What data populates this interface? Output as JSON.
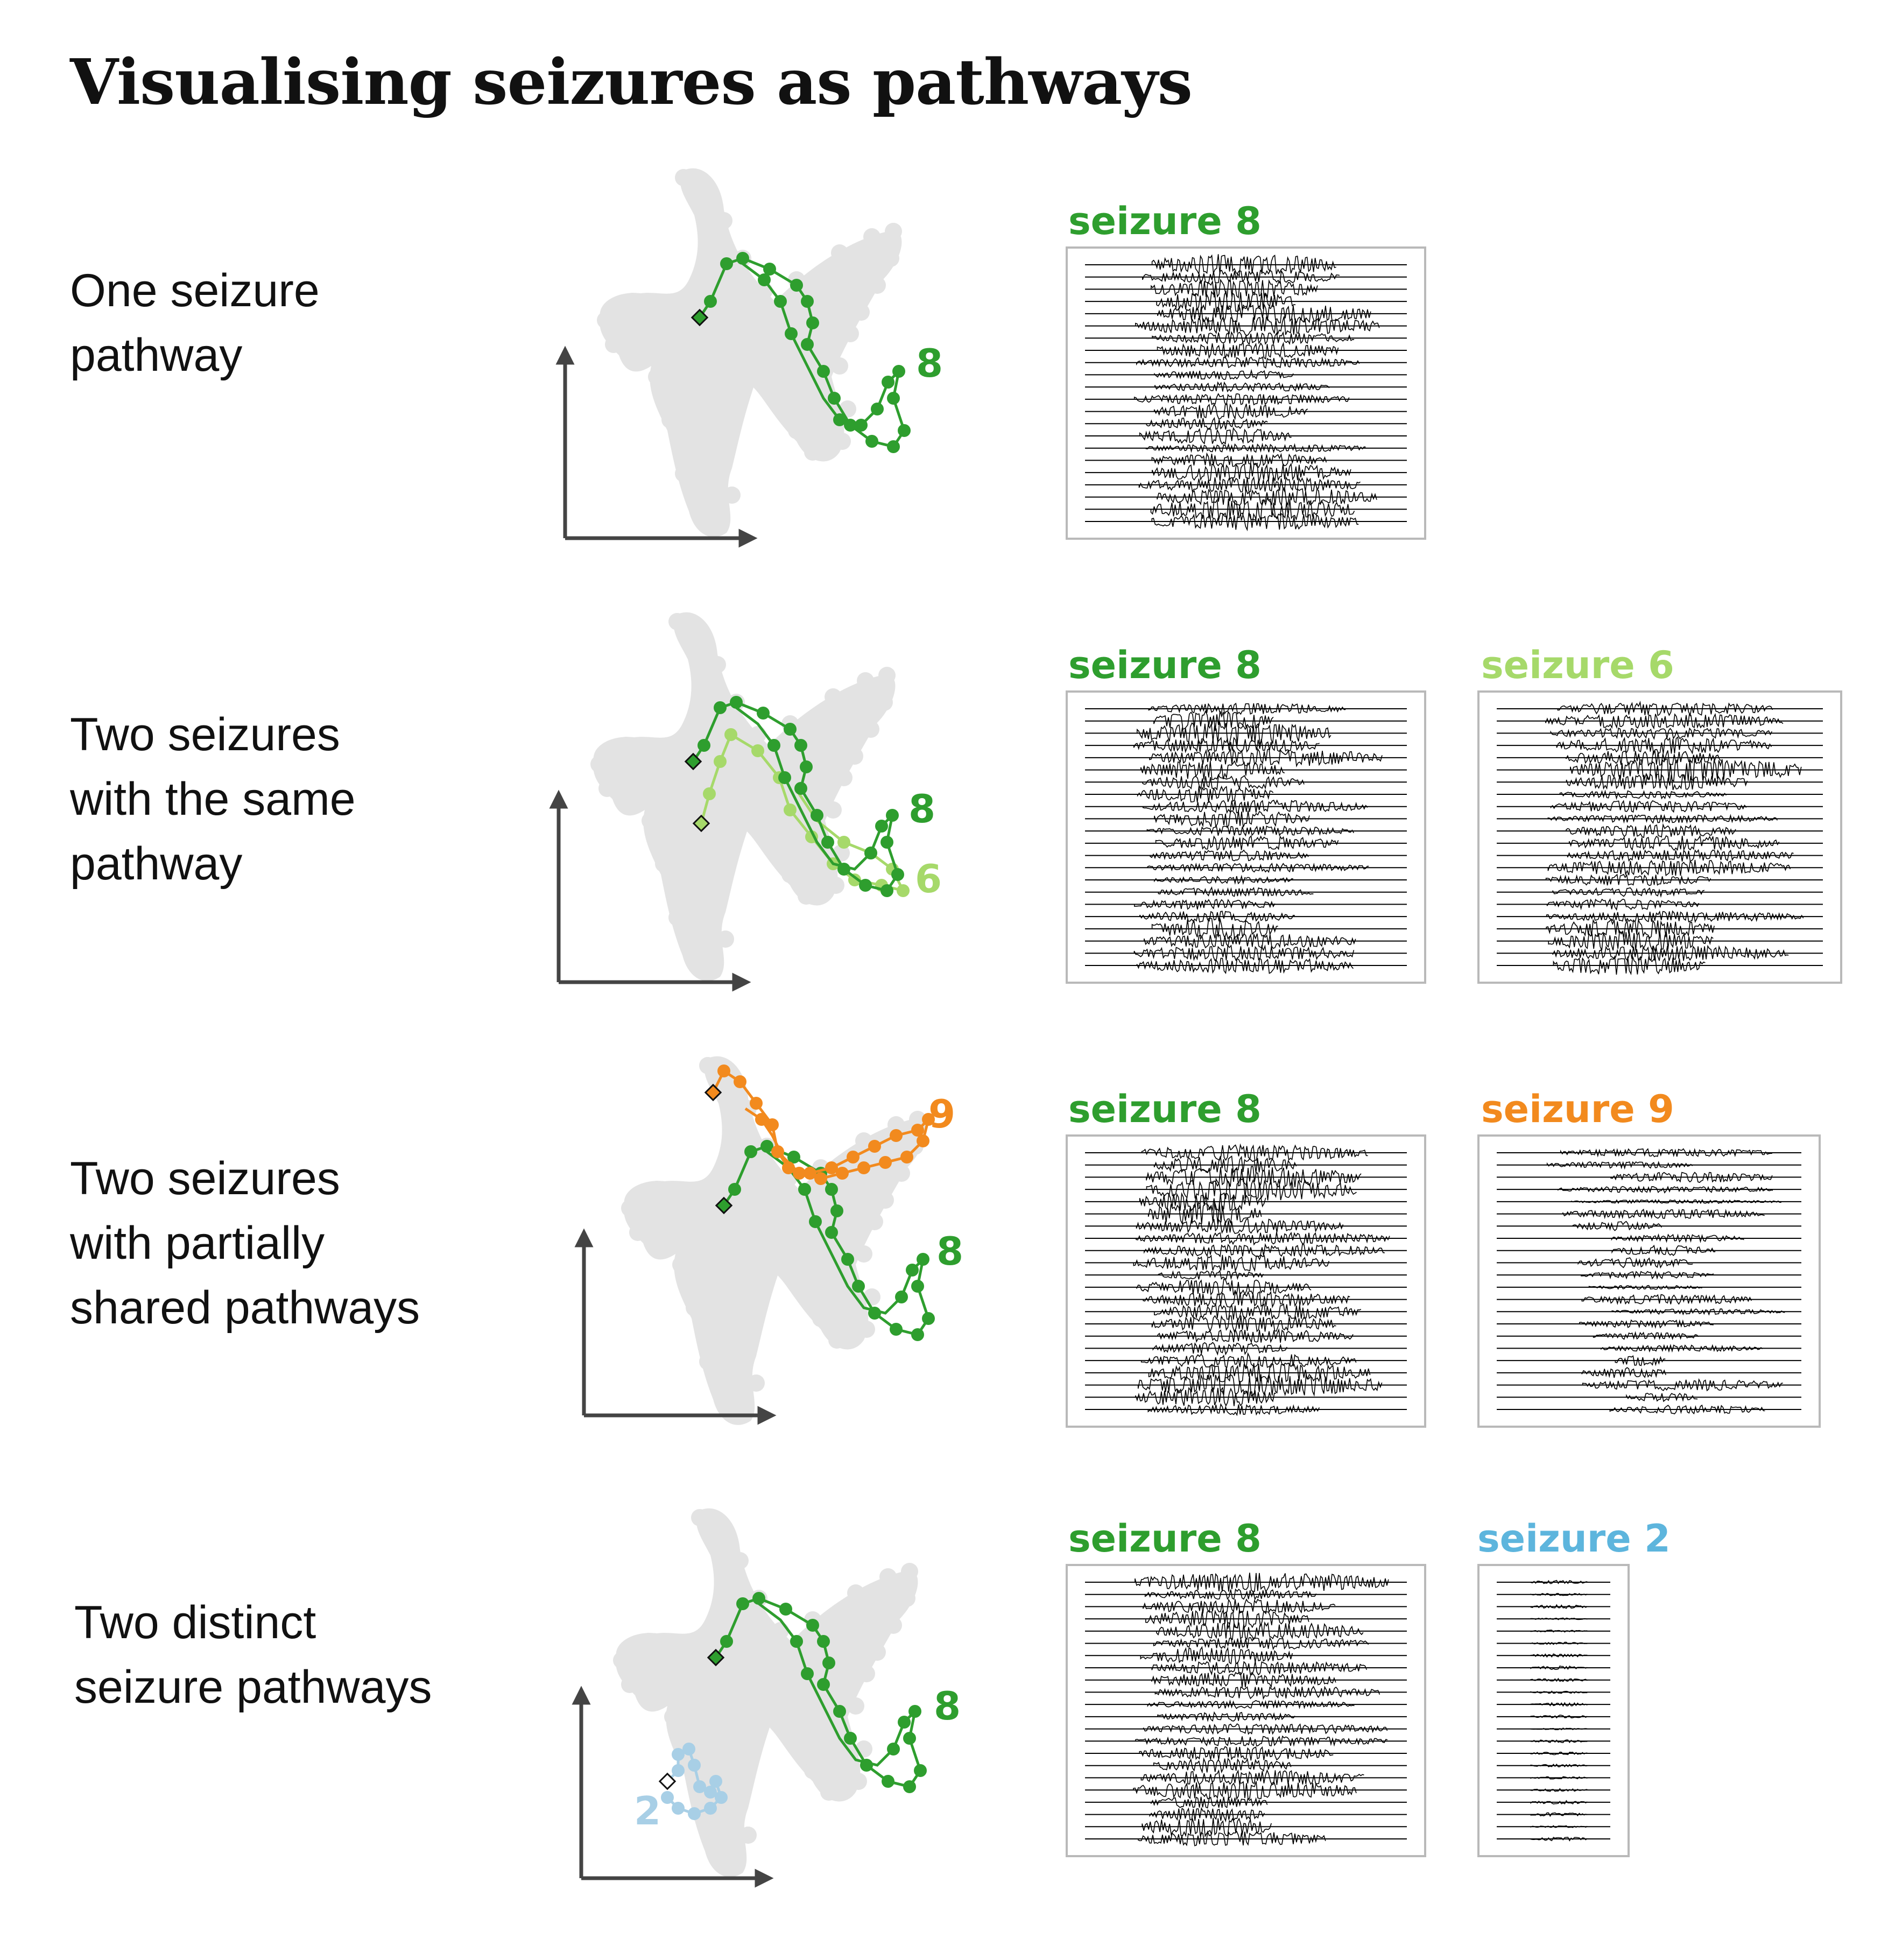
{
  "title": "Visualising seizures as pathways",
  "colors": {
    "seizure_8": "#2e9e2e",
    "seizure_6": "#a6d96a",
    "seizure_9": "#f28a1e",
    "seizure_2": "#5db5dd",
    "seizure_2_path": "#a8cfe6",
    "background_points": "#e3e3e3",
    "axis": "#444444",
    "trace": "#000000"
  },
  "rows": [
    {
      "label_lines": [
        "One seizure",
        "pathway"
      ],
      "path_labels": [
        {
          "text": "8",
          "color": "#2e9e2e"
        }
      ],
      "panels": [
        {
          "title": "seizure 8",
          "color": "#2e9e2e",
          "icon": "eeg-trace"
        }
      ]
    },
    {
      "label_lines": [
        "Two seizures",
        "with the same",
        "pathway"
      ],
      "path_labels": [
        {
          "text": "8",
          "color": "#2e9e2e"
        },
        {
          "text": "6",
          "color": "#a6d96a"
        }
      ],
      "panels": [
        {
          "title": "seizure 8",
          "color": "#2e9e2e",
          "icon": "eeg-trace"
        },
        {
          "title": "seizure 6",
          "color": "#a6d96a",
          "icon": "eeg-trace"
        }
      ]
    },
    {
      "label_lines": [
        "Two seizures",
        "with partially",
        "shared pathways"
      ],
      "path_labels": [
        {
          "text": "9",
          "color": "#f28a1e"
        },
        {
          "text": "8",
          "color": "#2e9e2e"
        }
      ],
      "panels": [
        {
          "title": "seizure 8",
          "color": "#2e9e2e",
          "icon": "eeg-trace"
        },
        {
          "title": "seizure 9",
          "color": "#f28a1e",
          "icon": "eeg-trace"
        }
      ]
    },
    {
      "label_lines": [
        "Two distinct",
        "seizure pathways"
      ],
      "path_labels": [
        {
          "text": "8",
          "color": "#2e9e2e"
        },
        {
          "text": "2",
          "color": "#a8cfe6"
        }
      ],
      "panels": [
        {
          "title": "seizure 8",
          "color": "#2e9e2e",
          "icon": "eeg-trace"
        },
        {
          "title": "seizure 2",
          "color": "#5db5dd",
          "icon": "eeg-trace"
        }
      ]
    }
  ]
}
